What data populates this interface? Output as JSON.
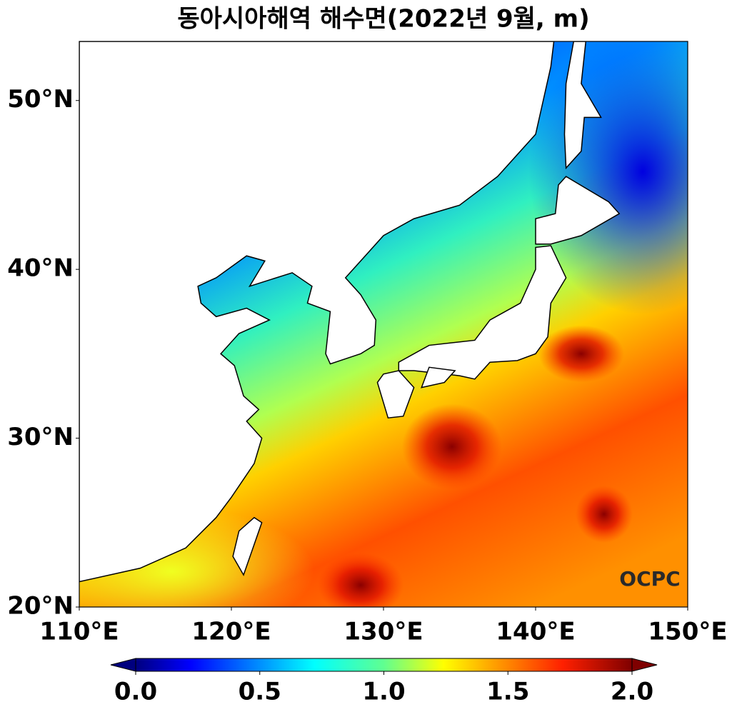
{
  "chart_data": {
    "type": "map",
    "title": "동아시아해역 해수면(2022년 9월, m)",
    "xlim": [
      110,
      150
    ],
    "ylim": [
      20,
      53.5
    ],
    "xticks": [
      {
        "value": 110,
        "label": "110°E"
      },
      {
        "value": 120,
        "label": "120°E"
      },
      {
        "value": 130,
        "label": "130°E"
      },
      {
        "value": 140,
        "label": "140°E"
      },
      {
        "value": 150,
        "label": "150°E"
      }
    ],
    "yticks": [
      {
        "value": 20,
        "label": "20°N"
      },
      {
        "value": 30,
        "label": "30°N"
      },
      {
        "value": 40,
        "label": "40°N"
      },
      {
        "value": 50,
        "label": "50°N"
      }
    ],
    "colorbar": {
      "lim": [
        0,
        2
      ],
      "ticks": [
        {
          "value": 0,
          "label": "0.0"
        },
        {
          "value": 0.5,
          "label": "0.5"
        },
        {
          "value": 1,
          "label": "1.0"
        },
        {
          "value": 1.5,
          "label": "1.5"
        },
        {
          "value": 2,
          "label": "2.0"
        }
      ]
    },
    "logo": "OCPC"
  }
}
